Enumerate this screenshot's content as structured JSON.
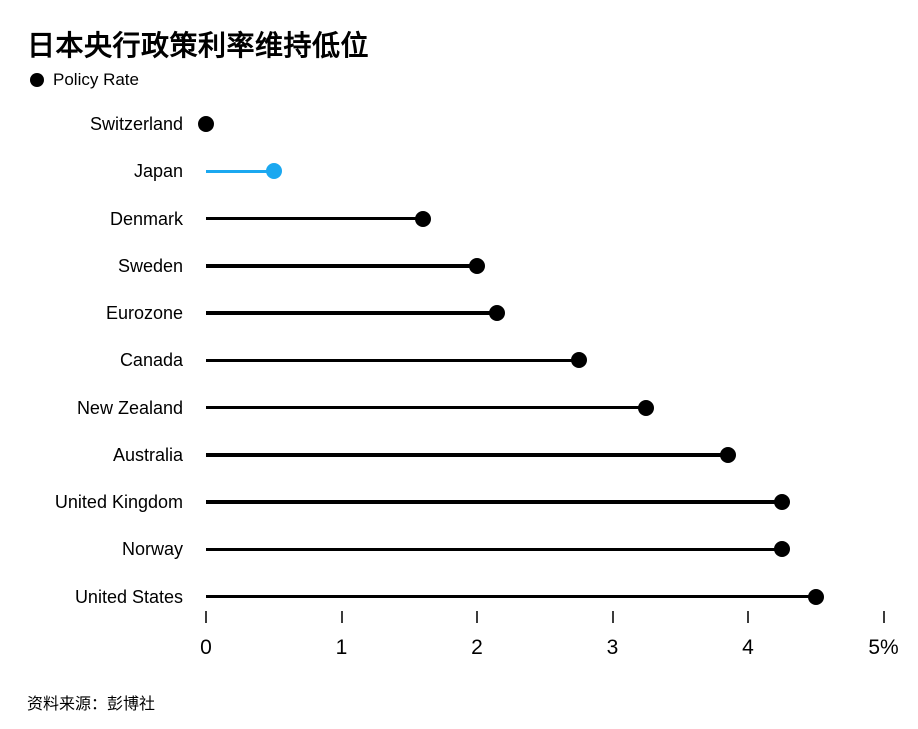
{
  "page": {
    "title": "日本央行政策利率维持低位",
    "source": "资料来源：彭博社"
  },
  "legend": {
    "label": "Policy Rate"
  },
  "colors": {
    "default_series": "#000000",
    "highlight_series": "#1BA8F0",
    "background": "#FFFFFF",
    "text": "#000000",
    "tick": "#3C3C3C"
  },
  "chart_data": {
    "type": "bar",
    "variant": "horizontal-lollipop",
    "title": "日本央行政策利率维持低位",
    "legend_label": "Policy Rate",
    "legend_position": "top-left",
    "categories": [
      "Switzerland",
      "Japan",
      "Denmark",
      "Sweden",
      "Eurozone",
      "Canada",
      "New Zealand",
      "Australia",
      "United Kingdom",
      "Norway",
      "United States"
    ],
    "values": [
      0,
      0.5,
      1.6,
      2.0,
      2.15,
      2.75,
      3.25,
      3.85,
      4.25,
      4.25,
      4.5
    ],
    "unit": "%",
    "highlighted_category": "Japan",
    "xlim": [
      0,
      5
    ],
    "xticks": [
      0,
      1,
      2,
      3,
      4,
      5
    ],
    "xtick_labels": [
      "0",
      "1",
      "2",
      "3",
      "4",
      "5%"
    ],
    "grid": false,
    "source": "资料来源：彭博社"
  }
}
